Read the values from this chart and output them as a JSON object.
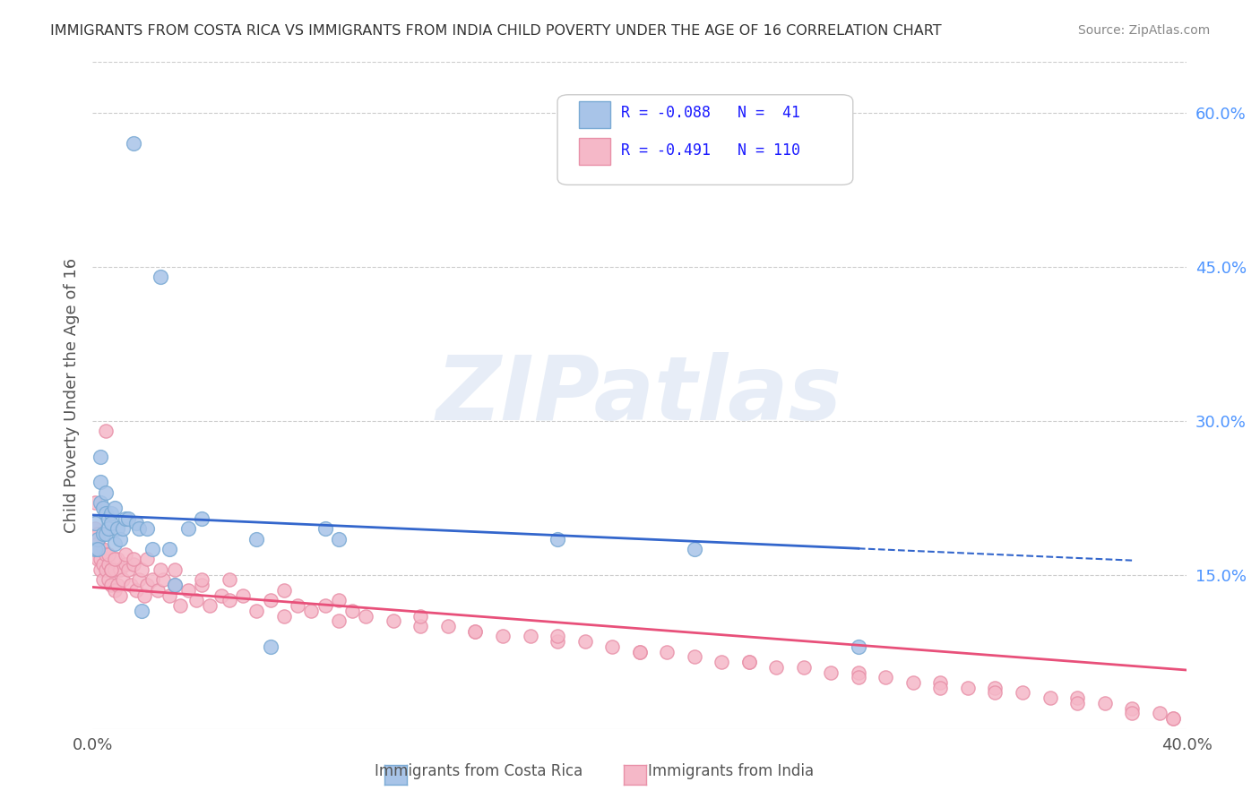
{
  "title": "IMMIGRANTS FROM COSTA RICA VS IMMIGRANTS FROM INDIA CHILD POVERTY UNDER THE AGE OF 16 CORRELATION CHART",
  "source": "Source: ZipAtlas.com",
  "xlabel": "",
  "ylabel": "Child Poverty Under the Age of 16",
  "xlim": [
    0.0,
    0.4
  ],
  "ylim": [
    0.0,
    0.65
  ],
  "xticks": [
    0.0,
    0.1,
    0.2,
    0.3,
    0.4
  ],
  "xticklabels": [
    "0.0%",
    "",
    "",
    "",
    "40.0%"
  ],
  "yticks_right": [
    0.15,
    0.3,
    0.45,
    0.6
  ],
  "ytick_labels_right": [
    "15.0%",
    "30.0%",
    "45.0%",
    "60.0%"
  ],
  "grid_color": "#cccccc",
  "background_color": "#ffffff",
  "watermark": "ZIPatlas",
  "watermark_color": "#d0ddf0",
  "costa_rica_color": "#a8c4e8",
  "costa_rica_edge": "#7aaad4",
  "india_color": "#f5b8c8",
  "india_edge": "#e890a8",
  "blue_line_color": "#3366cc",
  "pink_line_color": "#e8507a",
  "legend_R_costa_rica": "R = -0.088",
  "legend_N_costa_rica": "N =  41",
  "legend_R_india": "R = -0.491",
  "legend_N_india": "N = 110",
  "legend_label_costa_rica": "Immigrants from Costa Rica",
  "legend_label_india": "Immigrants from India",
  "costa_rica_x": [
    0.001,
    0.001,
    0.002,
    0.002,
    0.003,
    0.003,
    0.003,
    0.004,
    0.004,
    0.005,
    0.005,
    0.005,
    0.006,
    0.006,
    0.007,
    0.007,
    0.008,
    0.008,
    0.009,
    0.01,
    0.011,
    0.012,
    0.013,
    0.015,
    0.016,
    0.017,
    0.018,
    0.02,
    0.022,
    0.025,
    0.028,
    0.03,
    0.035,
    0.04,
    0.06,
    0.065,
    0.085,
    0.09,
    0.17,
    0.22,
    0.28
  ],
  "costa_rica_y": [
    0.2,
    0.175,
    0.185,
    0.175,
    0.265,
    0.24,
    0.22,
    0.215,
    0.19,
    0.23,
    0.21,
    0.19,
    0.205,
    0.195,
    0.21,
    0.2,
    0.215,
    0.18,
    0.195,
    0.185,
    0.195,
    0.205,
    0.205,
    0.57,
    0.2,
    0.195,
    0.115,
    0.195,
    0.175,
    0.44,
    0.175,
    0.14,
    0.195,
    0.205,
    0.185,
    0.08,
    0.195,
    0.185,
    0.185,
    0.175,
    0.08
  ],
  "india_x": [
    0.001,
    0.001,
    0.001,
    0.002,
    0.002,
    0.002,
    0.003,
    0.003,
    0.003,
    0.004,
    0.004,
    0.004,
    0.005,
    0.005,
    0.006,
    0.006,
    0.007,
    0.007,
    0.008,
    0.008,
    0.009,
    0.009,
    0.01,
    0.01,
    0.011,
    0.012,
    0.013,
    0.014,
    0.015,
    0.016,
    0.017,
    0.018,
    0.019,
    0.02,
    0.022,
    0.024,
    0.026,
    0.028,
    0.03,
    0.032,
    0.035,
    0.038,
    0.04,
    0.043,
    0.047,
    0.05,
    0.055,
    0.06,
    0.065,
    0.07,
    0.075,
    0.08,
    0.085,
    0.09,
    0.095,
    0.1,
    0.11,
    0.12,
    0.13,
    0.14,
    0.15,
    0.16,
    0.17,
    0.18,
    0.19,
    0.2,
    0.21,
    0.22,
    0.23,
    0.24,
    0.25,
    0.26,
    0.27,
    0.28,
    0.29,
    0.3,
    0.31,
    0.32,
    0.33,
    0.34,
    0.35,
    0.36,
    0.37,
    0.38,
    0.39,
    0.395,
    0.005,
    0.006,
    0.007,
    0.008,
    0.012,
    0.015,
    0.02,
    0.025,
    0.03,
    0.04,
    0.05,
    0.07,
    0.09,
    0.12,
    0.14,
    0.17,
    0.2,
    0.24,
    0.28,
    0.31,
    0.33,
    0.36,
    0.38,
    0.395
  ],
  "india_y": [
    0.22,
    0.195,
    0.175,
    0.19,
    0.18,
    0.165,
    0.175,
    0.165,
    0.155,
    0.175,
    0.16,
    0.145,
    0.17,
    0.155,
    0.16,
    0.145,
    0.155,
    0.14,
    0.155,
    0.135,
    0.165,
    0.14,
    0.155,
    0.13,
    0.145,
    0.16,
    0.155,
    0.14,
    0.16,
    0.135,
    0.145,
    0.155,
    0.13,
    0.14,
    0.145,
    0.135,
    0.145,
    0.13,
    0.14,
    0.12,
    0.135,
    0.125,
    0.14,
    0.12,
    0.13,
    0.125,
    0.13,
    0.115,
    0.125,
    0.11,
    0.12,
    0.115,
    0.12,
    0.105,
    0.115,
    0.11,
    0.105,
    0.1,
    0.1,
    0.095,
    0.09,
    0.09,
    0.085,
    0.085,
    0.08,
    0.075,
    0.075,
    0.07,
    0.065,
    0.065,
    0.06,
    0.06,
    0.055,
    0.055,
    0.05,
    0.045,
    0.045,
    0.04,
    0.04,
    0.035,
    0.03,
    0.03,
    0.025,
    0.02,
    0.015,
    0.01,
    0.29,
    0.17,
    0.155,
    0.165,
    0.17,
    0.165,
    0.165,
    0.155,
    0.155,
    0.145,
    0.145,
    0.135,
    0.125,
    0.11,
    0.095,
    0.09,
    0.075,
    0.065,
    0.05,
    0.04,
    0.035,
    0.025,
    0.015,
    0.01
  ]
}
